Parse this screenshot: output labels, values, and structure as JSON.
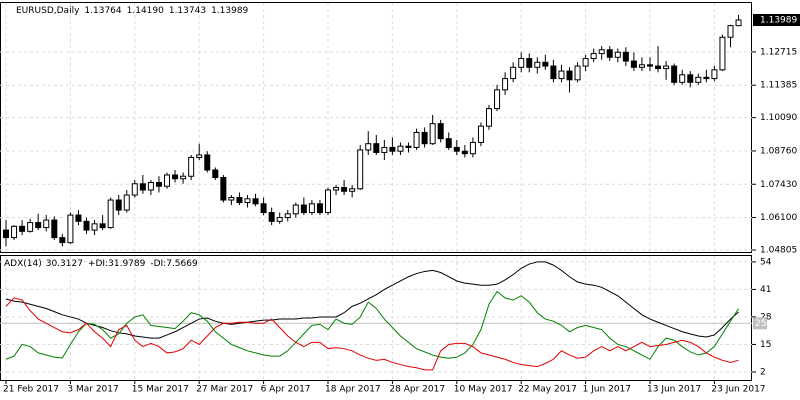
{
  "chart_data": [
    {
      "type": "candlestick",
      "title": "EURUSD,Daily",
      "header_values": [
        "1.13764",
        "1.14190",
        "1.13743",
        "1.13989"
      ],
      "categories": [
        "21 Feb 2017",
        null,
        null,
        null,
        null,
        null,
        null,
        null,
        "3 Mar 2017",
        null,
        null,
        null,
        null,
        null,
        null,
        null,
        "15 Mar 2017",
        null,
        null,
        null,
        null,
        null,
        null,
        null,
        "27 Mar 2017",
        null,
        null,
        null,
        null,
        null,
        null,
        null,
        "6 Apr 2017",
        null,
        null,
        null,
        null,
        null,
        null,
        null,
        "18 Apr 2017",
        null,
        null,
        null,
        null,
        null,
        null,
        null,
        "28 Apr 2017",
        null,
        null,
        null,
        null,
        null,
        null,
        null,
        "10 May 2017",
        null,
        null,
        null,
        null,
        null,
        null,
        null,
        "22 May 2017",
        null,
        null,
        null,
        null,
        null,
        null,
        null,
        "1 Jun 2017",
        null,
        null,
        null,
        null,
        null,
        null,
        null,
        "13 Jun 2017",
        null,
        null,
        null,
        null,
        null,
        null,
        null,
        "23 Jun 2017",
        null,
        null,
        null
      ],
      "open": [
        1.056,
        1.053,
        1.0575,
        1.0555,
        1.059,
        1.057,
        1.06,
        1.053,
        1.051,
        1.062,
        1.0595,
        1.056,
        1.0585,
        1.057,
        1.068,
        1.064,
        1.07,
        1.0745,
        1.072,
        1.075,
        1.0735,
        1.078,
        1.0765,
        1.0775,
        1.085,
        1.086,
        1.08,
        1.077,
        1.068,
        1.069,
        1.067,
        1.0685,
        1.0665,
        1.063,
        1.0595,
        1.061,
        1.0625,
        1.066,
        1.063,
        1.0665,
        1.063,
        1.072,
        1.073,
        1.0715,
        1.0725,
        1.088,
        1.0905,
        1.087,
        1.089,
        1.0875,
        1.0895,
        1.089,
        1.095,
        1.0905,
        1.0985,
        1.0925,
        1.089,
        1.0875,
        1.0865,
        1.091,
        1.0975,
        1.1045,
        1.112,
        1.1165,
        1.121,
        1.1245,
        1.121,
        1.123,
        1.1215,
        1.1165,
        1.1195,
        1.116,
        1.1215,
        1.1245,
        1.1265,
        1.128,
        1.125,
        1.127,
        1.1235,
        1.121,
        1.122,
        1.1215,
        1.1205,
        1.1215,
        1.115,
        1.118,
        1.115,
        1.117,
        1.1165,
        1.12,
        1.133,
        1.13764
      ],
      "high": [
        1.06,
        1.058,
        1.06,
        1.0605,
        1.0625,
        1.062,
        1.0615,
        1.0545,
        1.063,
        1.064,
        1.061,
        1.06,
        1.062,
        1.069,
        1.07,
        1.072,
        1.076,
        1.078,
        1.076,
        1.0775,
        1.079,
        1.08,
        1.079,
        1.086,
        1.0905,
        1.0875,
        1.081,
        1.078,
        1.07,
        1.071,
        1.07,
        1.0705,
        1.069,
        1.065,
        1.063,
        1.064,
        1.067,
        1.069,
        1.068,
        1.068,
        1.073,
        1.074,
        1.076,
        1.074,
        1.09,
        1.0955,
        1.094,
        1.092,
        1.093,
        1.091,
        1.091,
        1.0965,
        1.097,
        1.102,
        1.1,
        1.095,
        1.092,
        1.09,
        1.093,
        1.099,
        1.106,
        1.114,
        1.119,
        1.123,
        1.127,
        1.1265,
        1.125,
        1.126,
        1.124,
        1.122,
        1.121,
        1.123,
        1.126,
        1.1285,
        1.1295,
        1.1295,
        1.1285,
        1.129,
        1.127,
        1.125,
        1.125,
        1.1295,
        1.1235,
        1.1225,
        1.12,
        1.1195,
        1.1185,
        1.12,
        1.1215,
        1.134,
        1.138,
        1.1419
      ],
      "low": [
        1.0495,
        1.052,
        1.054,
        1.055,
        1.056,
        1.0555,
        1.052,
        1.0495,
        1.0505,
        1.058,
        1.0545,
        1.054,
        1.056,
        1.0565,
        1.062,
        1.063,
        1.069,
        1.0705,
        1.07,
        1.071,
        1.0725,
        1.075,
        1.0745,
        1.076,
        1.084,
        1.079,
        1.076,
        1.067,
        1.066,
        1.066,
        1.065,
        1.0655,
        1.062,
        1.058,
        1.0585,
        1.0595,
        1.061,
        1.062,
        1.062,
        1.062,
        1.062,
        1.07,
        1.07,
        1.069,
        1.072,
        1.086,
        1.086,
        1.084,
        1.086,
        1.086,
        1.087,
        1.088,
        1.089,
        1.09,
        1.091,
        1.088,
        1.086,
        1.085,
        1.085,
        1.0895,
        1.096,
        1.1035,
        1.11,
        1.115,
        1.119,
        1.119,
        1.1185,
        1.12,
        1.115,
        1.115,
        1.111,
        1.115,
        1.1195,
        1.123,
        1.124,
        1.1235,
        1.123,
        1.1215,
        1.1195,
        1.1195,
        1.1195,
        1.119,
        1.116,
        1.114,
        1.114,
        1.113,
        1.114,
        1.115,
        1.1155,
        1.1195,
        1.129,
        1.13743
      ],
      "close": [
        1.053,
        1.0575,
        1.0555,
        1.059,
        1.057,
        1.06,
        1.053,
        1.051,
        1.062,
        1.0595,
        1.056,
        1.0585,
        1.057,
        1.068,
        1.064,
        1.07,
        1.0745,
        1.072,
        1.075,
        1.0735,
        1.078,
        1.0765,
        1.0775,
        1.085,
        1.086,
        1.08,
        1.077,
        1.068,
        1.069,
        1.067,
        1.0685,
        1.0665,
        1.063,
        1.0595,
        1.061,
        1.0625,
        1.066,
        1.063,
        1.0665,
        1.063,
        1.072,
        1.073,
        1.0715,
        1.0725,
        1.088,
        1.0905,
        1.087,
        1.089,
        1.0875,
        1.0895,
        1.089,
        1.095,
        1.0905,
        1.0985,
        1.0925,
        1.089,
        1.0875,
        1.0865,
        1.091,
        1.0975,
        1.1045,
        1.112,
        1.1165,
        1.121,
        1.1245,
        1.121,
        1.123,
        1.1215,
        1.1165,
        1.1195,
        1.116,
        1.1215,
        1.1245,
        1.1265,
        1.128,
        1.125,
        1.127,
        1.1235,
        1.121,
        1.122,
        1.1215,
        1.1205,
        1.1215,
        1.115,
        1.118,
        1.115,
        1.117,
        1.1165,
        1.12,
        1.133,
        1.13764,
        1.13989
      ],
      "up_color": "#ffffff",
      "down_color": "#000000",
      "wick_color": "#000000",
      "ylim": [
        1.04725,
        1.14668
      ],
      "yticks": [
        {
          "value": 1.12715,
          "label": "1.12715"
        },
        {
          "value": 1.11385,
          "label": "1.11385"
        },
        {
          "value": 1.1009,
          "label": "1.10090"
        },
        {
          "value": 1.0876,
          "label": "1.08760"
        },
        {
          "value": 1.0743,
          "label": "1.07430"
        },
        {
          "value": 1.061,
          "label": "1.06100"
        },
        {
          "value": 1.04805,
          "label": "1.04805"
        }
      ],
      "grid": true
    },
    {
      "type": "line",
      "series": [
        {
          "name": "ADX(14)",
          "color": "#000000",
          "values": [
            36.5,
            35.5,
            35,
            34,
            33,
            32,
            30.5,
            29,
            28,
            27,
            25,
            24,
            23,
            21.5,
            20.5,
            20,
            19,
            18.5,
            18,
            18,
            19.5,
            21,
            23,
            25,
            27,
            27.5,
            26,
            25,
            24.5,
            25,
            25.5,
            26,
            26.5,
            26.5,
            27,
            27,
            27,
            27.5,
            27.5,
            28,
            28,
            28,
            30,
            33,
            34.5,
            36.5,
            38.5,
            41,
            43,
            45,
            47,
            48.5,
            49.5,
            50,
            49,
            47,
            45,
            44,
            43.5,
            43,
            43,
            43.5,
            45.5,
            48,
            51,
            53,
            54,
            54,
            52.5,
            50,
            47,
            44.5,
            43.5,
            43,
            42,
            40,
            38,
            35,
            32,
            29,
            27,
            25.5,
            24,
            22.5,
            21,
            20,
            19,
            18.5,
            19.5,
            23,
            27,
            30.3127
          ]
        },
        {
          "name": "+DI:",
          "color": "#008000",
          "values": [
            8,
            9.5,
            15,
            14,
            11,
            10,
            9,
            8.6,
            15,
            21,
            25,
            24.5,
            22,
            18,
            20,
            25,
            28,
            29,
            24,
            23.5,
            23,
            22.5,
            26,
            30,
            29,
            26,
            21,
            18,
            15,
            13.5,
            12,
            11,
            10,
            9.5,
            9.5,
            12,
            16,
            20,
            24,
            24.5,
            22,
            27,
            25,
            24.5,
            28,
            35,
            32,
            27,
            23,
            19,
            16,
            13,
            11.5,
            10,
            9,
            8.5,
            9,
            11,
            15,
            22,
            34,
            40,
            37,
            36,
            38,
            35,
            30,
            27,
            26,
            24,
            21,
            23,
            24,
            23,
            22,
            18,
            15,
            14,
            12,
            10,
            8,
            14,
            18,
            17,
            14,
            11.5,
            10,
            11,
            14,
            20,
            26,
            31.9789
          ]
        },
        {
          "name": "-DI:",
          "color": "#e00000",
          "values": [
            33,
            37,
            36,
            31,
            27,
            25,
            23,
            21,
            20.5,
            22,
            25,
            21,
            18,
            14,
            22,
            24,
            17,
            14,
            15.5,
            14,
            11,
            11.5,
            13,
            17,
            15,
            19,
            23,
            25,
            25,
            25.5,
            25.5,
            25,
            25,
            27,
            23,
            19,
            16,
            14,
            16,
            16,
            13,
            13.5,
            13,
            12,
            10,
            8.5,
            7.5,
            8,
            6.5,
            5.5,
            4.5,
            4,
            3,
            3,
            12,
            15,
            15.5,
            15.5,
            14,
            11,
            10,
            9,
            8,
            6.5,
            5.5,
            5,
            4.5,
            6,
            8,
            12,
            10,
            8.5,
            9,
            12,
            14,
            12,
            14,
            12,
            14,
            16,
            14,
            14.5,
            15,
            16,
            17,
            16,
            14,
            11,
            9,
            7.5,
            6.5,
            7.5669
          ]
        }
      ],
      "level": 25,
      "level_color": "#c0c0c0",
      "ylim": [
        -1.8,
        56.8
      ],
      "yticks": [
        54,
        41,
        28,
        15,
        2
      ],
      "grid": true
    }
  ]
}
